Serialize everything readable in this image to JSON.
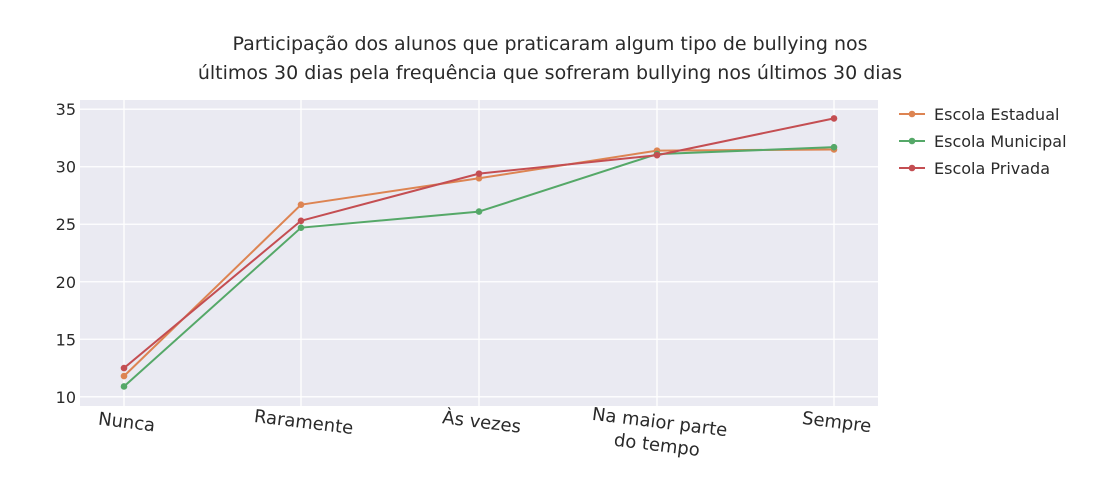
{
  "chart_data": {
    "type": "line",
    "title_lines": [
      "Participação dos alunos que praticaram algum tipo de bullying nos",
      "últimos 30 dias  pela frequência que sofreram bullying nos últimos 30 dias"
    ],
    "categories": [
      "Nunca",
      "Raramente",
      "Às vezes",
      "Na maior parte do tempo",
      "Sempre"
    ],
    "category_tick_lines": [
      [
        "Nunca"
      ],
      [
        "Raramente"
      ],
      [
        "Às vezes"
      ],
      [
        "Na maior parte",
        "do tempo"
      ],
      [
        "Sempre"
      ]
    ],
    "series": [
      {
        "name": "Escola Estadual",
        "color": "#dd8452",
        "values": [
          11.8,
          26.7,
          29.0,
          31.4,
          31.5
        ]
      },
      {
        "name": "Escola Municipal",
        "color": "#55a868",
        "values": [
          10.9,
          24.7,
          26.1,
          31.1,
          31.7
        ]
      },
      {
        "name": "Escola Privada",
        "color": "#c44e52",
        "values": [
          12.5,
          25.3,
          29.4,
          31.0,
          34.2
        ]
      }
    ],
    "ylim": [
      9.2,
      35.8
    ],
    "yticks": [
      10,
      15,
      20,
      25,
      30,
      35
    ],
    "grid": true,
    "legend_position": "top-right",
    "plot_background": "#eaeaf2"
  }
}
